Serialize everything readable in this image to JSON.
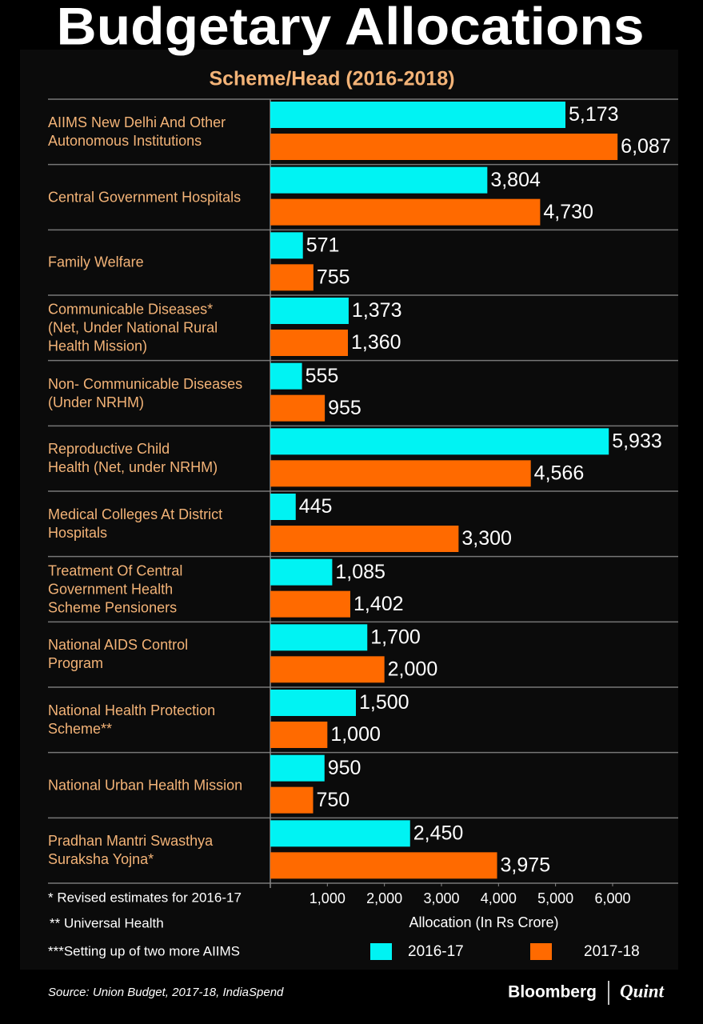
{
  "chart_data": {
    "type": "bar",
    "orientation": "horizontal",
    "title": "Budgetary Allocations",
    "subtitle": "Scheme/Head (2016-2018)",
    "categories": [
      "AIIMS New Delhi And Other\nAutonomous Institutions",
      "Central Government Hospitals",
      "Family Welfare",
      "Communicable Diseases*\n(Net, Under National Rural\nHealth Mission)",
      "Non- Communicable Diseases\n(Under NRHM)",
      "Reproductive Child\nHealth (Net, under NRHM)",
      "Medical Colleges At District\nHospitals",
      "Treatment Of Central\nGovernment Health\nScheme Pensioners",
      "National AIDS Control\nProgram",
      "National Health Protection\nScheme**",
      "National Urban Health Mission",
      "Pradhan Mantri Swasthya\nSuraksha Yojna*"
    ],
    "series": [
      {
        "name": "2016-17",
        "color": "#00f3f3",
        "values": [
          5173,
          3804,
          571,
          1373,
          555,
          5933,
          445,
          1085,
          1700,
          1500,
          950,
          2450
        ],
        "value_labels": [
          "5,173",
          "3,804",
          "571",
          "1,373",
          "555",
          "5,933",
          "445",
          "1,085",
          "1,700",
          "1,500",
          "950",
          "2,450"
        ]
      },
      {
        "name": "2017-18",
        "color": "#ff6a00",
        "values": [
          6087,
          4730,
          755,
          1360,
          955,
          4566,
          3300,
          1402,
          2000,
          1000,
          750,
          3975
        ],
        "value_labels": [
          "6,087",
          "4,730",
          "755",
          "1,360",
          "955",
          "4,566",
          "3,300",
          "1,402",
          "2,000",
          "1,000",
          "750",
          "3,975"
        ]
      }
    ],
    "xlim": [
      0,
      7150
    ],
    "xticks": [
      {
        "value": 1000,
        "label": "1,000"
      },
      {
        "value": 2000,
        "label": "2,000"
      },
      {
        "value": 3000,
        "label": "3,000"
      },
      {
        "value": 4000,
        "label": "4,000"
      },
      {
        "value": 5000,
        "label": "5,000"
      },
      {
        "value": 6000,
        "label": "6,000"
      }
    ],
    "xlabel": "Allocation (In Rs Crore)",
    "notes": [
      "* Revised estimates for 2016-17",
      "** Universal Health",
      "***Setting up of two more AIIMS"
    ],
    "source": "Source: Union Budget, 2017-18,  IndiaSpend",
    "brand": [
      "Bloomberg",
      "Quint"
    ]
  }
}
